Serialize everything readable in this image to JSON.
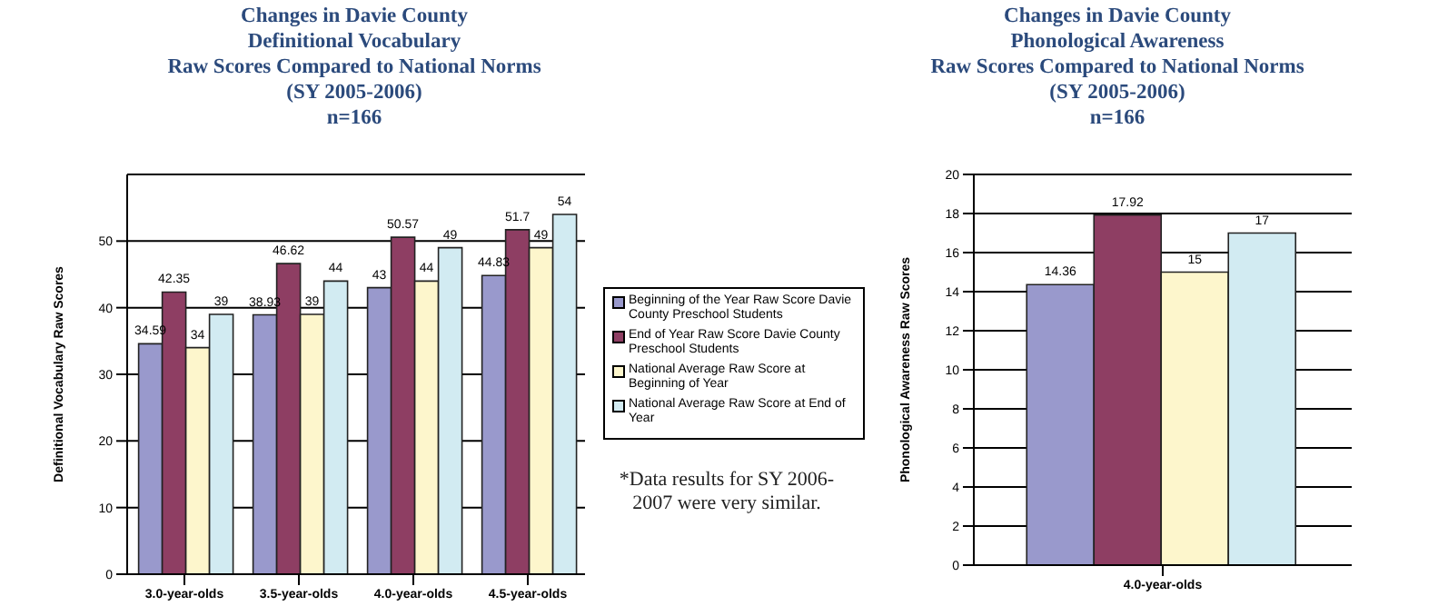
{
  "chart_data": [
    {
      "type": "bar",
      "title": "Changes in Davie County\nDefinitional Vocabulary\nRaw Scores Compared to National Norms",
      "subtitle": "(SY 2005-2006)\nn=166",
      "ylabel": "Definitional Vocabulary Raw Scores",
      "categories": [
        "3.0-year-olds",
        "3.5-year-olds",
        "4.0-year-olds",
        "4.5-year-olds"
      ],
      "series": [
        {
          "name": "Beginning of the Year Raw Score Davie County Preschool Students",
          "color": "#9999cc",
          "values": [
            34.59,
            38.93,
            43,
            44.83
          ]
        },
        {
          "name": "End of Year Raw Score Davie County Preschool Students",
          "color": "#8e3e63",
          "values": [
            42.35,
            46.62,
            50.57,
            51.7
          ]
        },
        {
          "name": "National Average Raw Score at Beginning of Year",
          "color": "#fdf6cc",
          "values": [
            34,
            39,
            44,
            49
          ]
        },
        {
          "name": "National Average Raw Score at End of Year",
          "color": "#d2ebf2",
          "values": [
            39,
            44,
            49,
            54
          ]
        }
      ],
      "ylim": [
        0,
        60
      ],
      "yticks": [
        0,
        10,
        20,
        30,
        40,
        50
      ],
      "grid": "y",
      "legend": "right",
      "data_labels": true,
      "annotations": [
        "*Data results for SY 2006-2007 were very similar."
      ]
    },
    {
      "type": "bar",
      "title": "Changes in Davie County\nPhonological Awareness\nRaw Scores Compared to National Norms",
      "subtitle": "(SY 2005-2006)\nn=166",
      "ylabel": "Phonological Awareness Raw Scores",
      "categories": [
        "4.0-year-olds"
      ],
      "series": [
        {
          "color": "#9999cc",
          "values": [
            14.36
          ]
        },
        {
          "color": "#8e3e63",
          "values": [
            17.92
          ]
        },
        {
          "color": "#fdf6cc",
          "values": [
            15
          ]
        },
        {
          "color": "#d2ebf2",
          "values": [
            17
          ]
        }
      ],
      "ylim": [
        0,
        20
      ],
      "yticks": [
        0,
        2,
        4,
        6,
        8,
        10,
        12,
        14,
        16,
        18,
        20
      ],
      "grid": "y",
      "data_labels": true
    }
  ]
}
